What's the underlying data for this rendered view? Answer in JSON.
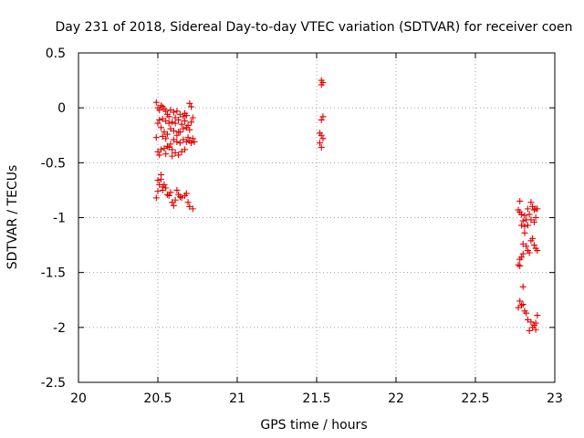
{
  "chart_data": {
    "type": "scatter",
    "title": "Day 231 of 2018, Sidereal Day-to-day VTEC variation (SDTVAR) for receiver coen",
    "xlabel": "GPS time / hours",
    "ylabel": "SDTVAR / TECUs",
    "xlim": [
      20,
      23
    ],
    "ylim": [
      -2.5,
      0.5
    ],
    "xticks": [
      20,
      20.5,
      21,
      21.5,
      22,
      22.5,
      23
    ],
    "xtick_labels": [
      "20",
      "20.5",
      "21",
      "21.5",
      "22",
      "22.5",
      "23"
    ],
    "yticks": [
      0.5,
      0,
      -0.5,
      -1,
      -1.5,
      -2,
      -2.5
    ],
    "ytick_labels": [
      "0.5",
      "0",
      "-0.5",
      "-1",
      "-1.5",
      "-2",
      "-2.5"
    ],
    "grid": true,
    "marker": "+",
    "color": "#e00000",
    "series": [
      {
        "name": "SDTVAR",
        "points": [
          [
            20.49,
            0.05
          ],
          [
            20.5,
            0.0
          ],
          [
            20.51,
            -0.02
          ],
          [
            20.52,
            0.02
          ],
          [
            20.53,
            0.01
          ],
          [
            20.54,
            -0.01
          ],
          [
            20.55,
            -0.03
          ],
          [
            20.56,
            -0.06
          ],
          [
            20.58,
            -0.02
          ],
          [
            20.6,
            -0.04
          ],
          [
            20.62,
            -0.03
          ],
          [
            20.64,
            -0.06
          ],
          [
            20.66,
            -0.08
          ],
          [
            20.68,
            -0.07
          ],
          [
            20.7,
            0.04
          ],
          [
            20.71,
            0.01
          ],
          [
            20.72,
            -0.09
          ],
          [
            20.71,
            -0.13
          ],
          [
            20.69,
            -0.16
          ],
          [
            20.67,
            -0.12
          ],
          [
            20.65,
            -0.15
          ],
          [
            20.63,
            -0.11
          ],
          [
            20.61,
            -0.09
          ],
          [
            20.59,
            -0.13
          ],
          [
            20.57,
            -0.14
          ],
          [
            20.55,
            -0.12
          ],
          [
            20.53,
            -0.1
          ],
          [
            20.51,
            -0.11
          ],
          [
            20.5,
            -0.14
          ],
          [
            20.52,
            -0.18
          ],
          [
            20.54,
            -0.22
          ],
          [
            20.56,
            -0.24
          ],
          [
            20.58,
            -0.19
          ],
          [
            20.6,
            -0.21
          ],
          [
            20.62,
            -0.25
          ],
          [
            20.64,
            -0.22
          ],
          [
            20.66,
            -0.19
          ],
          [
            20.68,
            -0.18
          ],
          [
            20.7,
            -0.2
          ],
          [
            20.72,
            -0.28
          ],
          [
            20.7,
            -0.3
          ],
          [
            20.68,
            -0.31
          ],
          [
            20.66,
            -0.29
          ],
          [
            20.64,
            -0.32
          ],
          [
            20.62,
            -0.31
          ],
          [
            20.6,
            -0.29
          ],
          [
            20.58,
            -0.33
          ],
          [
            20.56,
            -0.35
          ],
          [
            20.54,
            -0.37
          ],
          [
            20.52,
            -0.38
          ],
          [
            20.5,
            -0.4
          ],
          [
            20.49,
            -0.27
          ],
          [
            20.53,
            -0.26
          ],
          [
            20.55,
            -0.28
          ],
          [
            20.57,
            -0.36
          ],
          [
            20.59,
            -0.38
          ],
          [
            20.61,
            -0.41
          ],
          [
            20.63,
            -0.43
          ],
          [
            20.65,
            -0.4
          ],
          [
            20.67,
            -0.38
          ],
          [
            20.51,
            -0.43
          ],
          [
            20.55,
            -0.42
          ],
          [
            20.59,
            -0.44
          ],
          [
            20.63,
            -0.22
          ],
          [
            20.67,
            -0.05
          ],
          [
            20.71,
            -0.32
          ],
          [
            20.69,
            -0.27
          ],
          [
            20.73,
            -0.31
          ],
          [
            20.61,
            -0.14
          ],
          [
            20.57,
            -0.08
          ],
          [
            20.5,
            -0.66
          ],
          [
            20.51,
            -0.7
          ],
          [
            20.52,
            -0.65
          ],
          [
            20.53,
            -0.72
          ],
          [
            20.52,
            -0.61
          ],
          [
            20.49,
            -0.82
          ],
          [
            20.5,
            -0.76
          ],
          [
            20.53,
            -0.75
          ],
          [
            20.55,
            -0.73
          ],
          [
            20.56,
            -0.79
          ],
          [
            20.57,
            -0.8
          ],
          [
            20.58,
            -0.77
          ],
          [
            20.59,
            -0.86
          ],
          [
            20.6,
            -0.89
          ],
          [
            20.62,
            -0.75
          ],
          [
            20.63,
            -0.79
          ],
          [
            20.65,
            -0.82
          ],
          [
            20.67,
            -0.8
          ],
          [
            20.68,
            -0.78
          ],
          [
            20.69,
            -0.86
          ],
          [
            20.7,
            -0.9
          ],
          [
            20.72,
            -0.92
          ],
          [
            20.64,
            -0.81
          ],
          [
            20.61,
            -0.84
          ],
          [
            20.54,
            -0.7
          ],
          [
            21.53,
            0.25
          ],
          [
            21.54,
            0.23
          ],
          [
            21.53,
            0.21
          ],
          [
            21.54,
            -0.08
          ],
          [
            21.53,
            -0.11
          ],
          [
            21.52,
            -0.23
          ],
          [
            21.53,
            -0.25
          ],
          [
            21.54,
            -0.28
          ],
          [
            21.52,
            -0.32
          ],
          [
            21.53,
            -0.36
          ],
          [
            22.78,
            -0.85
          ],
          [
            22.77,
            -0.93
          ],
          [
            22.78,
            -0.95
          ],
          [
            22.79,
            -0.97
          ],
          [
            22.8,
            -1.03
          ],
          [
            22.79,
            -1.07
          ],
          [
            22.81,
            -0.98
          ],
          [
            22.82,
            -1.02
          ],
          [
            22.83,
            -0.92
          ],
          [
            22.84,
            -0.97
          ],
          [
            22.85,
            -0.86
          ],
          [
            22.86,
            -0.9
          ],
          [
            22.87,
            -0.93
          ],
          [
            22.88,
            -0.92
          ],
          [
            22.89,
            -0.92
          ],
          [
            22.88,
            -1.0
          ],
          [
            22.87,
            -1.04
          ],
          [
            22.85,
            -1.02
          ],
          [
            22.83,
            -1.07
          ],
          [
            22.81,
            -1.08
          ],
          [
            22.82,
            -1.26
          ],
          [
            22.83,
            -1.3
          ],
          [
            22.84,
            -1.32
          ],
          [
            22.85,
            -1.21
          ],
          [
            22.86,
            -1.19
          ],
          [
            22.87,
            -1.25
          ],
          [
            22.88,
            -1.28
          ],
          [
            22.89,
            -1.3
          ],
          [
            22.8,
            -1.33
          ],
          [
            22.79,
            -1.36
          ],
          [
            22.78,
            -1.38
          ],
          [
            22.77,
            -1.43
          ],
          [
            22.78,
            -1.44
          ],
          [
            22.81,
            -1.14
          ],
          [
            22.8,
            -1.24
          ],
          [
            22.8,
            -1.63
          ],
          [
            22.78,
            -1.76
          ],
          [
            22.79,
            -1.8
          ],
          [
            22.77,
            -1.82
          ],
          [
            22.8,
            -1.79
          ],
          [
            22.81,
            -1.85
          ],
          [
            22.82,
            -1.87
          ],
          [
            22.83,
            -1.93
          ],
          [
            22.85,
            -1.95
          ],
          [
            22.84,
            -2.03
          ],
          [
            22.86,
            -2.0
          ],
          [
            22.87,
            -1.98
          ],
          [
            22.88,
            -1.96
          ],
          [
            22.89,
            -1.89
          ],
          [
            22.88,
            -2.02
          ]
        ]
      }
    ]
  }
}
